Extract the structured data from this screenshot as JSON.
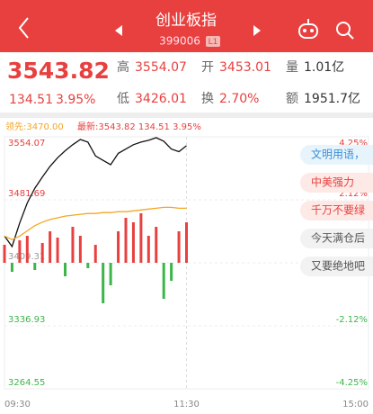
{
  "header": {
    "title": "创业板指",
    "code": "399006",
    "badge": "L1"
  },
  "quote": {
    "price": "3543.82",
    "change": "134.51",
    "change_pct": "3.95%",
    "stats": [
      {
        "label": "高",
        "value": "3554.07"
      },
      {
        "label": "开",
        "value": "3453.01"
      },
      {
        "label": "量",
        "value": "1.01亿"
      },
      {
        "label": "低",
        "value": "3426.01"
      },
      {
        "label": "换",
        "value": "2.70%"
      },
      {
        "label": "额",
        "value": "1951.7亿"
      }
    ]
  },
  "chart_data": {
    "type": "line",
    "legend": {
      "lead": "领先:3470.00",
      "latest": "最新:3543.82 134.51 3.95%"
    },
    "categories": [
      "09:30",
      null,
      null,
      null,
      null,
      null,
      null,
      null,
      null,
      null,
      null,
      null,
      null,
      null,
      null,
      null,
      null,
      null,
      null,
      null,
      null,
      null,
      null,
      null,
      "11:30",
      null,
      null,
      null,
      null,
      null,
      null,
      null,
      null,
      null,
      null,
      null,
      null,
      null,
      null,
      null,
      null,
      null,
      null,
      null,
      null,
      null,
      null,
      null,
      "15:00"
    ],
    "series": [
      {
        "color": "#111111",
        "values": [
          3440,
          3428,
          3455,
          3478,
          3495,
          3508,
          3520,
          3530,
          3538,
          3545,
          3551,
          3548,
          3532,
          3527,
          3522,
          3535,
          3540,
          3545,
          3548,
          3550,
          3553,
          3549,
          3540,
          3537,
          3543.82,
          null,
          null,
          null,
          null,
          null,
          null,
          null,
          null,
          null,
          null,
          null,
          null,
          null,
          null,
          null,
          null,
          null,
          null,
          null,
          null,
          null,
          null,
          null,
          null
        ]
      },
      {
        "color": "#f5a623",
        "values": [
          3440,
          3436,
          3440,
          3446,
          3452,
          3456,
          3459,
          3461,
          3463,
          3464,
          3465,
          3466,
          3466,
          3467,
          3467,
          3468,
          3468,
          3469,
          3470,
          3471,
          3472,
          3473,
          3473,
          3472,
          3472,
          null,
          null,
          null,
          null,
          null,
          null,
          null,
          null,
          null,
          null,
          null,
          null,
          null,
          null,
          null,
          null,
          null,
          null,
          null,
          null,
          null,
          null,
          null,
          null
        ]
      }
    ],
    "bars": {
      "up_color": "#e8403f",
      "down_color": "#3cb54a",
      "values": [
        20,
        -10,
        25,
        30,
        -8,
        22,
        35,
        28,
        -15,
        40,
        30,
        -6,
        20,
        -45,
        -25,
        35,
        50,
        45,
        55,
        30,
        40,
        -40,
        -20,
        35,
        45,
        null,
        null,
        null,
        null,
        null,
        null,
        null,
        null,
        null,
        null,
        null,
        null,
        null,
        null,
        null,
        null,
        null,
        null,
        null,
        null,
        null,
        null,
        null,
        null
      ]
    },
    "ylim": [
      3264.55,
      3554.07
    ],
    "yticks": [
      3264.55,
      3336.93,
      3409.31,
      3481.69,
      3554.07
    ],
    "y2lim": [
      -4.25,
      4.25
    ],
    "y2ticks": [
      {
        "value": -4.25,
        "label": "-4.25%"
      },
      {
        "value": -2.12,
        "label": "-2.12%"
      },
      {
        "value": 2.12,
        "label": "2.12%"
      },
      {
        "value": 4.25,
        "label": "4.25%"
      }
    ],
    "grid": true
  },
  "comments": [
    "文明用语，",
    "中美强力",
    "千万不要绿",
    "今天满仓后",
    "又要绝地吧"
  ]
}
